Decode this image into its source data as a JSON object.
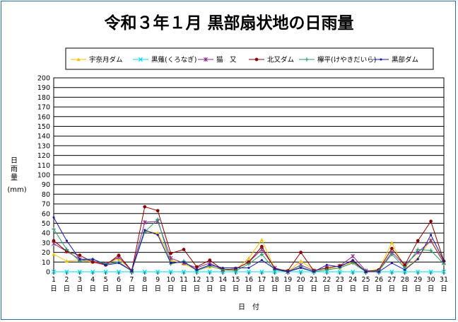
{
  "chart_data": {
    "type": "line",
    "title": "令和３年１月 黒部扇状地の日雨量",
    "ylabel_chars": [
      "日",
      "雨",
      "量"
    ],
    "ylabel_unit": "(mm)",
    "xlabel": "日　付",
    "ylim": [
      0,
      200
    ],
    "ytick_step": 10,
    "y_ticks": [
      "0",
      "10",
      "20",
      "30",
      "40",
      "50",
      "60",
      "70",
      "80",
      "90",
      "100",
      "110",
      "120",
      "130",
      "140",
      "150",
      "160",
      "170",
      "180",
      "190",
      "200"
    ],
    "x_tick_numbers": [
      "1",
      "2",
      "3",
      "4",
      "5",
      "6",
      "7",
      "8",
      "9",
      "10",
      "11",
      "12",
      "13",
      "14",
      "15",
      "16",
      "17",
      "18",
      "19",
      "20",
      "21",
      "22",
      "23",
      "24",
      "25",
      "26",
      "27",
      "28",
      "29",
      "30",
      "31"
    ],
    "x_tick_suffix": "日",
    "grid": true,
    "legend_position": "top",
    "series": [
      {
        "name": "宇奈月ダム",
        "color": "#f2c200",
        "marker": "triangle",
        "values": [
          18,
          11,
          12,
          10,
          9,
          13,
          2,
          42,
          40,
          12,
          8,
          2,
          5,
          3,
          2,
          14,
          33,
          3,
          0,
          11,
          2,
          3,
          4,
          10,
          1,
          2,
          30,
          3,
          14,
          33,
          10
        ]
      },
      {
        "name": "黒薙(くろなぎ)",
        "color": "#00d8e8",
        "marker": "x",
        "values": [
          0,
          0,
          0,
          0,
          0,
          0,
          0,
          0,
          0,
          0,
          0,
          0,
          0,
          0,
          0,
          0,
          0,
          0,
          0,
          0,
          0,
          0,
          0,
          0,
          0,
          0,
          0,
          0,
          0,
          0,
          0
        ]
      },
      {
        "name": "猫　又",
        "color": "#8a2b8a",
        "marker": "star",
        "values": [
          29,
          21,
          13,
          11,
          8,
          15,
          1,
          51,
          52,
          14,
          9,
          4,
          9,
          2,
          3,
          10,
          23,
          4,
          0,
          7,
          1,
          4,
          6,
          16,
          1,
          1,
          20,
          7,
          20,
          32,
          9
        ]
      },
      {
        "name": "北又ダム",
        "color": "#8b0000",
        "marker": "circle",
        "values": [
          32,
          21,
          17,
          10,
          7,
          17,
          1,
          67,
          63,
          19,
          23,
          5,
          12,
          2,
          3,
          10,
          26,
          3,
          1,
          20,
          1,
          4,
          6,
          11,
          0,
          2,
          24,
          7,
          32,
          52,
          11
        ]
      },
      {
        "name": "欅平(けやきだいら)",
        "color": "#2e9a6e",
        "marker": "plus",
        "values": [
          44,
          23,
          11,
          13,
          8,
          10,
          1,
          41,
          54,
          8,
          11,
          1,
          6,
          2,
          1,
          8,
          18,
          2,
          0,
          5,
          0,
          2,
          4,
          9,
          0,
          1,
          18,
          4,
          23,
          22,
          8
        ]
      },
      {
        "name": "黒部ダム",
        "color": "#1a1aa8",
        "marker": "dot",
        "values": [
          56,
          32,
          13,
          13,
          7,
          9,
          1,
          43,
          38,
          9,
          10,
          2,
          7,
          4,
          4,
          4,
          12,
          3,
          0,
          4,
          0,
          7,
          5,
          12,
          0,
          0,
          9,
          2,
          13,
          38,
          11
        ]
      }
    ]
  }
}
